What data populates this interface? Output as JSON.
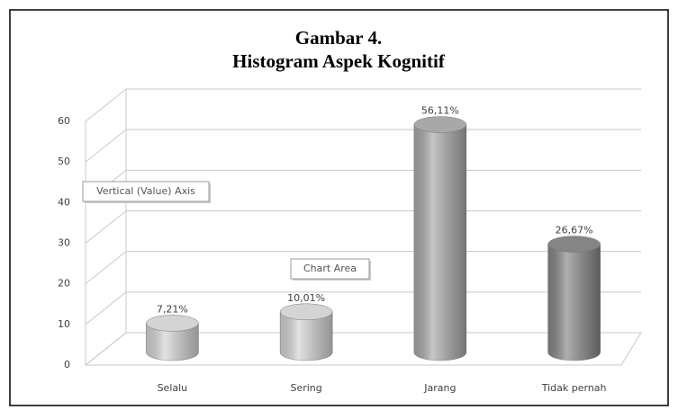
{
  "chart_data": {
    "type": "bar",
    "title": [
      "Gambar 4.",
      "Histogram Aspek Kognitif"
    ],
    "categories": [
      "Selalu",
      "Sering",
      "Jarang",
      "Tidak pernah"
    ],
    "values": [
      7.21,
      10.01,
      56.11,
      26.67
    ],
    "value_labels": [
      "7,21%",
      "10,01%",
      "56,11%",
      "26,67%"
    ],
    "colors": [
      "#d4d4d4",
      "#d4d4d4",
      "#a8a8a8",
      "#858585"
    ],
    "ylim": [
      0,
      60
    ],
    "yticks": [
      0,
      10,
      20,
      30,
      40,
      50,
      60
    ],
    "grid": true,
    "annotations": [
      "Vertical (Value) Axis",
      "Chart Area"
    ]
  }
}
